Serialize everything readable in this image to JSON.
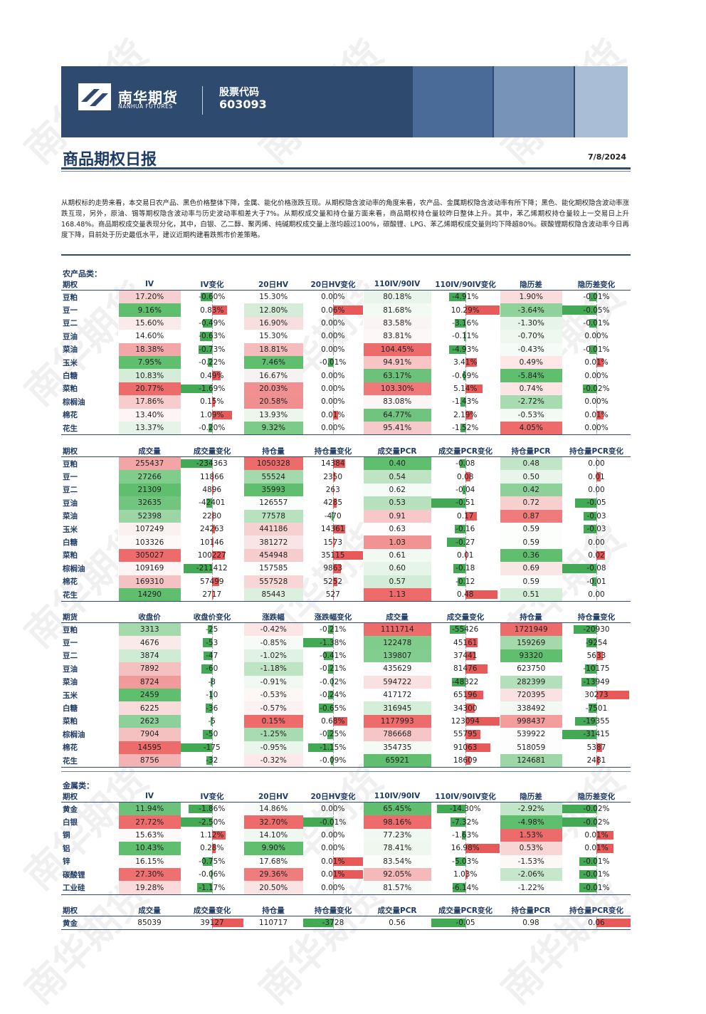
{
  "header": {
    "brand_cn": "南华期货",
    "brand_en": "NANHUA FUTURES",
    "stock_label": "股票代码",
    "stock_code": "603093"
  },
  "report": {
    "title": "商品期权日报",
    "date": "7/8/2024",
    "summary": "从期权标的走势来看，本交易日农产品、黑色价格整体下降，金属、能化价格涨跌互现。从期权隐含波动率的角度来看，农产品、金属期权隐含波动率有所下降；黑色、能化期权隐含波动率涨跌互现，另外，原油、锡等期权隐含波动率与历史波动率相差大于7%。从期权成交量和持仓量方面来看，商品期权持仓量较昨日整体上升。其中，苯乙烯期权持仓量较上一交易日上升168.48%。商品期权成交量表现分化，其中，白银、乙二醇、聚丙烯、纯碱期权成交量上涨均超过100%，碳酸锂、LPG、苯乙烯期权成交量则均下降超80%。碳酸锂期权隐含波动率今日再度下降，目前处于历史最低水平，建议近期构建看跌熊市价差策略。",
    "watermark": "南华期货"
  },
  "colors": {
    "navy": "#2e4a6e",
    "green": "#4caf50",
    "red": "#e53935"
  },
  "sections": {
    "agri_label": "农产品类：",
    "metal_label": "金属类："
  },
  "agri_vol": {
    "headers": [
      "期权",
      "IV",
      "IV变化",
      "20日HV",
      "20日HV变化",
      "110IV/90IV",
      "110IV/90IV变化",
      "隐历差",
      "隐历差变化"
    ],
    "rows": [
      {
        "name": "豆粕",
        "iv": "17.20%",
        "iv_chg": "-0.60%",
        "hv": "15.30%",
        "hv_chg": "0.00%",
        "skew": "80.18%",
        "skew_chg": "-4.91%",
        "diff": "1.90%",
        "diff_chg": "-0.01%"
      },
      {
        "name": "豆一",
        "iv": "9.16%",
        "iv_chg": "0.83%",
        "hv": "12.80%",
        "hv_chg": "0.06%",
        "skew": "81.68%",
        "skew_chg": "10.29%",
        "diff": "-3.64%",
        "diff_chg": "-0.05%"
      },
      {
        "name": "豆二",
        "iv": "15.60%",
        "iv_chg": "-0.49%",
        "hv": "16.90%",
        "hv_chg": "0.00%",
        "skew": "83.58%",
        "skew_chg": "-3.16%",
        "diff": "-1.30%",
        "diff_chg": "-0.01%"
      },
      {
        "name": "豆油",
        "iv": "14.60%",
        "iv_chg": "-0.63%",
        "hv": "15.30%",
        "hv_chg": "0.00%",
        "skew": "83.81%",
        "skew_chg": "-0.11%",
        "diff": "-0.70%",
        "diff_chg": "0.00%"
      },
      {
        "name": "菜油",
        "iv": "18.38%",
        "iv_chg": "-0.73%",
        "hv": "18.81%",
        "hv_chg": "0.00%",
        "skew": "104.45%",
        "skew_chg": "-4.93%",
        "diff": "-0.43%",
        "diff_chg": "-0.01%"
      },
      {
        "name": "玉米",
        "iv": "7.95%",
        "iv_chg": "-0.22%",
        "hv": "7.46%",
        "hv_chg": "-0.01%",
        "skew": "94.91%",
        "skew_chg": "3.41%",
        "diff": "0.49%",
        "diff_chg": "0.01%"
      },
      {
        "name": "白糖",
        "iv": "10.83%",
        "iv_chg": "0.49%",
        "hv": "16.67%",
        "hv_chg": "0.00%",
        "skew": "63.17%",
        "skew_chg": "-0.69%",
        "diff": "-5.84%",
        "diff_chg": "0.00%"
      },
      {
        "name": "菜粕",
        "iv": "20.77%",
        "iv_chg": "-1.69%",
        "hv": "20.03%",
        "hv_chg": "0.00%",
        "skew": "103.30%",
        "skew_chg": "5.14%",
        "diff": "0.74%",
        "diff_chg": "-0.02%"
      },
      {
        "name": "棕榈油",
        "iv": "17.86%",
        "iv_chg": "0.15%",
        "hv": "20.58%",
        "hv_chg": "0.00%",
        "skew": "83.08%",
        "skew_chg": "-1.43%",
        "diff": "-2.72%",
        "diff_chg": "0.00%"
      },
      {
        "name": "棉花",
        "iv": "13.40%",
        "iv_chg": "1.09%",
        "hv": "13.93%",
        "hv_chg": "0.01%",
        "skew": "64.77%",
        "skew_chg": "2.19%",
        "diff": "-0.53%",
        "diff_chg": "0.01%"
      },
      {
        "name": "花生",
        "iv": "13.37%",
        "iv_chg": "-0.20%",
        "hv": "9.32%",
        "hv_chg": "0.00%",
        "skew": "95.41%",
        "skew_chg": "-1.52%",
        "diff": "4.05%",
        "diff_chg": "0.00%"
      }
    ]
  },
  "agri_vol_fills": {
    "iv": [
      "#f6d0d0",
      "#5fbf6f",
      "#fbeaea",
      "#ffffff",
      "#f2a8a8",
      "#5fbf6f",
      "#d5ecd8",
      "#ee6b6b",
      "#f6cccc",
      "#fdf5f5",
      "#e6f4e8"
    ],
    "hv": [
      "#ffffff",
      "#d4ecd8",
      "#f9dede",
      "#ffffff",
      "#f4bcbc",
      "#5fbf6f",
      "#f6f2f2",
      "#f19090",
      "#f08f8f",
      "#ecf6ed",
      "#7dcb89"
    ],
    "skew": [
      "#e9f5eb",
      "#f2faf3",
      "#fbf4f4",
      "#fdf7f7",
      "#ee6b6b",
      "#f8c4c4",
      "#6cc27a",
      "#f07878",
      "#fbf5f5",
      "#70c47d",
      "#f6caca"
    ],
    "diff": [
      "#f9dcdc",
      "#8fd29a",
      "#e7f4e9",
      "#eef8ef",
      "#f5fbf6",
      "#fde7e7",
      "#5fbf6f",
      "#fde5e5",
      "#a7dbb0",
      "#f3faf4",
      "#ee6b6b"
    ]
  },
  "agri_vol_bars": {
    "iv_chg": [
      -0.6,
      0.83,
      -0.49,
      -0.63,
      -0.73,
      -0.22,
      0.49,
      -1.69,
      0.15,
      1.09,
      -0.2
    ],
    "hv_chg": [
      0,
      0.06,
      0,
      0,
      0,
      -0.01,
      0,
      0,
      0,
      0.01,
      0
    ],
    "skew_chg": [
      -4.91,
      10.29,
      -3.16,
      -0.11,
      -4.93,
      3.41,
      -0.69,
      5.14,
      -1.43,
      2.19,
      -1.52
    ],
    "diff_chg": [
      -0.01,
      -0.05,
      -0.01,
      0,
      -0.01,
      0.01,
      0,
      -0.02,
      0,
      0.01,
      0
    ]
  },
  "agri_volume": {
    "headers": [
      "期权",
      "成交量",
      "成交量变化",
      "持仓量",
      "持仓量变化",
      "成交量PCR",
      "成交量PCR变化",
      "持仓量PCR",
      "持仓量PCR变化"
    ],
    "rows": [
      {
        "name": "豆粕",
        "vol": "255437",
        "vol_chg": "-234363",
        "oi": "1050328",
        "oi_chg": "14384",
        "pcr": "0.40",
        "pcr_chg": "-0.08",
        "oi_pcr": "0.48",
        "oi_pcr_chg": "0.00"
      },
      {
        "name": "豆一",
        "vol": "27266",
        "vol_chg": "11866",
        "oi": "55524",
        "oi_chg": "2350",
        "pcr": "0.54",
        "pcr_chg": "0.08",
        "oi_pcr": "0.50",
        "oi_pcr_chg": "0.01"
      },
      {
        "name": "豆二",
        "vol": "21309",
        "vol_chg": "4896",
        "oi": "35993",
        "oi_chg": "263",
        "pcr": "0.62",
        "pcr_chg": "-0.04",
        "oi_pcr": "0.42",
        "oi_pcr_chg": "0.00"
      },
      {
        "name": "豆油",
        "vol": "32635",
        "vol_chg": "-42401",
        "oi": "126557",
        "oi_chg": "4285",
        "pcr": "0.53",
        "pcr_chg": "-0.51",
        "oi_pcr": "0.72",
        "oi_pcr_chg": "-0.05"
      },
      {
        "name": "菜油",
        "vol": "52398",
        "vol_chg": "2280",
        "oi": "77578",
        "oi_chg": "-470",
        "pcr": "0.91",
        "pcr_chg": "0.17",
        "oi_pcr": "0.87",
        "oi_pcr_chg": "-0.03"
      },
      {
        "name": "玉米",
        "vol": "107249",
        "vol_chg": "24263",
        "oi": "441186",
        "oi_chg": "14361",
        "pcr": "0.63",
        "pcr_chg": "-0.16",
        "oi_pcr": "0.59",
        "oi_pcr_chg": "-0.03"
      },
      {
        "name": "白糖",
        "vol": "103326",
        "vol_chg": "10146",
        "oi": "381272",
        "oi_chg": "1573",
        "pcr": "1.03",
        "pcr_chg": "-0.27",
        "oi_pcr": "0.59",
        "oi_pcr_chg": "0.00"
      },
      {
        "name": "菜粕",
        "vol": "305027",
        "vol_chg": "100227",
        "oi": "454948",
        "oi_chg": "35115",
        "pcr": "0.61",
        "pcr_chg": "0.01",
        "oi_pcr": "0.36",
        "oi_pcr_chg": "0.02"
      },
      {
        "name": "棕榈油",
        "vol": "109169",
        "vol_chg": "-211412",
        "oi": "157585",
        "oi_chg": "9863",
        "pcr": "0.60",
        "pcr_chg": "-0.18",
        "oi_pcr": "0.69",
        "oi_pcr_chg": "-0.08"
      },
      {
        "name": "棉花",
        "vol": "169310",
        "vol_chg": "57499",
        "oi": "557528",
        "oi_chg": "5252",
        "pcr": "0.57",
        "pcr_chg": "-0.12",
        "oi_pcr": "0.59",
        "oi_pcr_chg": "-0.01"
      },
      {
        "name": "花生",
        "vol": "14290",
        "vol_chg": "2717",
        "oi": "85443",
        "oi_chg": "527",
        "pcr": "1.13",
        "pcr_chg": "0.48",
        "oi_pcr": "0.51",
        "oi_pcr_chg": "0.00"
      }
    ]
  },
  "agri_volume_fills": {
    "vol": [
      "#f2a5a5",
      "#7fcc8b",
      "#5fbf6f",
      "#71c57e",
      "#9bd6a4",
      "#fbf1f1",
      "#fdf9f9",
      "#ee6b6b",
      "#fdf5f5",
      "#f4c2c2",
      "#5fbf6f"
    ],
    "oi": [
      "#ee6b6b",
      "#a4d9ac",
      "#5fbf6f",
      "#fbfdfb",
      "#b8e2be",
      "#f7d1d1",
      "#f9e5e5",
      "#f7cccc",
      "#fcfefc",
      "#f8d6d6",
      "#ddf0e0"
    ],
    "pcr": [
      "#5fbf6f",
      "#bfe4c4",
      "#f5fbf6",
      "#b6e1bc",
      "#f8c7c7",
      "#fefcfc",
      "#f29393",
      "#f1f9f2",
      "#e7f4e9",
      "#d3ecd7",
      "#ee6b6b"
    ],
    "oi_pcr": [
      "#c2e5c7",
      "#e8f5ea",
      "#8ed09a",
      "#f7cfcf",
      "#f07b7b",
      "#fcfefc",
      "#fcfefc",
      "#5fbf6f",
      "#fbe6e6",
      "#fcfefc",
      "#d5eed9"
    ]
  },
  "agri_volume_bars": {
    "vol_chg": [
      -234363,
      11866,
      4896,
      -42401,
      2280,
      24263,
      10146,
      100227,
      -211412,
      57499,
      2717
    ],
    "oi_chg": [
      14384,
      2350,
      263,
      4285,
      -470,
      14361,
      1573,
      35115,
      9863,
      5252,
      527
    ],
    "pcr_chg": [
      -0.08,
      0.08,
      -0.04,
      -0.51,
      0.17,
      -0.16,
      -0.27,
      0.01,
      -0.18,
      -0.12,
      0.48
    ],
    "oi_pcr_chg": [
      0,
      0.01,
      0,
      -0.05,
      -0.03,
      -0.03,
      0,
      0.02,
      -0.08,
      -0.01,
      0
    ]
  },
  "agri_futures": {
    "headers": [
      "期货",
      "收盘价",
      "收盘价变化",
      "涨跌幅",
      "涨跌幅变化",
      "成交量",
      "成交量变化",
      "持仓量",
      "持仓量变化"
    ],
    "rows": [
      {
        "name": "豆粕",
        "close": "3313",
        "close_chg": "-25",
        "pct": "-0.42%",
        "pct_chg": "-0.21%",
        "vol": "1111714",
        "vol_chg": "-55426",
        "oi": "1721949",
        "oi_chg": "-20930"
      },
      {
        "name": "豆一",
        "close": "4676",
        "close_chg": "-53",
        "pct": "-0.85%",
        "pct_chg": "-1.38%",
        "vol": "122478",
        "vol_chg": "45161",
        "oi": "159269",
        "oi_chg": "-9254"
      },
      {
        "name": "豆二",
        "close": "3874",
        "close_chg": "-47",
        "pct": "-1.02%",
        "pct_chg": "-0.41%",
        "vol": "139807",
        "vol_chg": "37441",
        "oi": "93320",
        "oi_chg": "5633"
      },
      {
        "name": "豆油",
        "close": "7892",
        "close_chg": "-60",
        "pct": "-1.18%",
        "pct_chg": "-0.21%",
        "vol": "435629",
        "vol_chg": "81476",
        "oi": "623750",
        "oi_chg": "-10175"
      },
      {
        "name": "菜油",
        "close": "8724",
        "close_chg": "-8",
        "pct": "-0.91%",
        "pct_chg": "-0.02%",
        "vol": "594722",
        "vol_chg": "-48322",
        "oi": "282399",
        "oi_chg": "-13949"
      },
      {
        "name": "玉米",
        "close": "2459",
        "close_chg": "-10",
        "pct": "-0.53%",
        "pct_chg": "-0.24%",
        "vol": "417172",
        "vol_chg": "65196",
        "oi": "720395",
        "oi_chg": "30273"
      },
      {
        "name": "白糖",
        "close": "6225",
        "close_chg": "-36",
        "pct": "-0.57%",
        "pct_chg": "-0.65%",
        "vol": "316945",
        "vol_chg": "34300",
        "oi": "338492",
        "oi_chg": "-7501"
      },
      {
        "name": "菜粕",
        "close": "2623",
        "close_chg": "-5",
        "pct": "0.15%",
        "pct_chg": "0.68%",
        "vol": "1177993",
        "vol_chg": "123094",
        "oi": "998437",
        "oi_chg": "-19355"
      },
      {
        "name": "棕榈油",
        "close": "7904",
        "close_chg": "-50",
        "pct": "-1.25%",
        "pct_chg": "-0.25%",
        "vol": "786668",
        "vol_chg": "55795",
        "oi": "539922",
        "oi_chg": "-31415"
      },
      {
        "name": "棉花",
        "close": "14595",
        "close_chg": "-175",
        "pct": "-0.95%",
        "pct_chg": "-1.15%",
        "vol": "354735",
        "vol_chg": "91063",
        "oi": "518059",
        "oi_chg": "5387"
      },
      {
        "name": "花生",
        "close": "8756",
        "close_chg": "-32",
        "pct": "-0.32%",
        "pct_chg": "-0.09%",
        "vol": "65921",
        "vol_chg": "18609",
        "oi": "124681",
        "oi_chg": "2481"
      }
    ]
  },
  "agri_futures_fills": {
    "close": [
      "#a5daad",
      "#fbeaea",
      "#d0ebd4",
      "#f5c0c0",
      "#f09a9a",
      "#5fbf6f",
      "#fadbdb",
      "#8dd099",
      "#f5c0c0",
      "#ee6b6b",
      "#f3b3b3"
    ],
    "pct": [
      "#fbe5e5",
      "#f7fbf8",
      "#e0f2e3",
      "#bfe4c4",
      "#f1f9f2",
      "#fdf7f7",
      "#fcf2f2",
      "#ee6b6b",
      "#a8dbb0",
      "#eaf6ec",
      "#fde9e9"
    ],
    "vol": [
      "#ee6b6b",
      "#7fcc8b",
      "#83ce8f",
      "#fefdfd",
      "#fae0e0",
      "#fefefe",
      "#d4eed8",
      "#ee6b6b",
      "#f6c6c6",
      "#f4fbf5",
      "#5fbf6f"
    ],
    "oi": [
      "#ee6b6b",
      "#a4d9ac",
      "#5fbf6f",
      "#fcfdfc",
      "#b3e0ba",
      "#fae2e2",
      "#f2f9f3",
      "#f39d9d",
      "#fcfdfc",
      "#fdfdfd",
      "#9dd7a6"
    ]
  },
  "agri_futures_bars": {
    "close_chg": [
      -25,
      -53,
      -47,
      -60,
      -8,
      -10,
      -36,
      -5,
      -50,
      -175,
      -32
    ],
    "pct_chg": [
      -0.21,
      -1.38,
      -0.41,
      -0.21,
      -0.02,
      -0.24,
      -0.65,
      0.68,
      -0.25,
      -1.15,
      -0.09
    ],
    "vol_chg": [
      -55426,
      45161,
      37441,
      81476,
      -48322,
      65196,
      34300,
      123094,
      55795,
      91063,
      18609
    ],
    "oi_chg": [
      -20930,
      -9254,
      5633,
      -10175,
      -13949,
      30273,
      -7501,
      -19355,
      -31415,
      5387,
      2481
    ]
  },
  "metal_vol": {
    "headers": [
      "期权",
      "IV",
      "IV变化",
      "20日HV",
      "20日HV变化",
      "110IV/90IV",
      "110IV/90IV变化",
      "隐历差",
      "隐历差变化"
    ],
    "rows": [
      {
        "name": "黄金",
        "iv": "11.94%",
        "iv_chg": "-1.86%",
        "hv": "14.86%",
        "hv_chg": "0.00%",
        "skew": "65.45%",
        "skew_chg": "-14.30%",
        "diff": "-2.92%",
        "diff_chg": "-0.02%"
      },
      {
        "name": "白银",
        "iv": "27.72%",
        "iv_chg": "-2.50%",
        "hv": "32.70%",
        "hv_chg": "-0.01%",
        "skew": "98.16%",
        "skew_chg": "-7.32%",
        "diff": "-4.98%",
        "diff_chg": "-0.02%"
      },
      {
        "name": "铜",
        "iv": "15.63%",
        "iv_chg": "1.12%",
        "hv": "14.10%",
        "hv_chg": "0.00%",
        "skew": "77.23%",
        "skew_chg": "-1.63%",
        "diff": "1.53%",
        "diff_chg": "0.01%"
      },
      {
        "name": "铝",
        "iv": "10.43%",
        "iv_chg": "0.28%",
        "hv": "9.90%",
        "hv_chg": "0.00%",
        "skew": "78.41%",
        "skew_chg": "16.98%",
        "diff": "0.53%",
        "diff_chg": "0.01%"
      },
      {
        "name": "锌",
        "iv": "16.15%",
        "iv_chg": "-0.75%",
        "hv": "17.68%",
        "hv_chg": "0.01%",
        "skew": "83.54%",
        "skew_chg": "-5.03%",
        "diff": "-1.53%",
        "diff_chg": "-0.01%"
      },
      {
        "name": "碳酸锂",
        "iv": "27.30%",
        "iv_chg": "-0.06%",
        "hv": "29.36%",
        "hv_chg": "0.01%",
        "skew": "92.05%",
        "skew_chg": "1.03%",
        "diff": "-2.06%",
        "diff_chg": "-0.01%"
      },
      {
        "name": "工业硅",
        "iv": "19.28%",
        "iv_chg": "-1.17%",
        "hv": "20.50%",
        "hv_chg": "0.00%",
        "skew": "81.57%",
        "skew_chg": "-6.14%",
        "diff": "-1.22%",
        "diff_chg": "-0.01%"
      }
    ]
  },
  "metal_vol_fills": {
    "iv": [
      "#6cc27a",
      "#ee6b6b",
      "#fdf9f9",
      "#5fbf6f",
      "#fdfafa",
      "#ef7070",
      "#fadada"
    ],
    "hv": [
      "#f8fcf8",
      "#ee6b6b",
      "#eff8f0",
      "#5fbf6f",
      "#fcfefc",
      "#f07d7d",
      "#fbe3e3"
    ],
    "skew": [
      "#5fbf6f",
      "#ee6b6b",
      "#f0f9f1",
      "#eef8ef",
      "#fbfdfb",
      "#f5b9b9",
      "#f8fcf8"
    ],
    "diff": [
      "#c3e5c8",
      "#5fbf6f",
      "#ee6b6b",
      "#f9d6d6",
      "#fdf8f8",
      "#c7e7cc",
      "#fbfdfb"
    ]
  },
  "metal_vol_bars": {
    "iv_chg": [
      -1.86,
      -2.5,
      1.12,
      0.28,
      -0.75,
      -0.06,
      -1.17
    ],
    "hv_chg": [
      0,
      -0.01,
      0,
      0,
      0.01,
      0.01,
      0
    ],
    "skew_chg": [
      -14.3,
      -7.32,
      -1.63,
      16.98,
      -5.03,
      1.03,
      -6.14
    ],
    "diff_chg": [
      -0.02,
      -0.02,
      0.01,
      0.01,
      -0.01,
      -0.01,
      -0.01
    ]
  },
  "metal_volume": {
    "headers": [
      "期权",
      "成交量",
      "成交量变化",
      "持仓量",
      "持仓量变化",
      "成交量PCR",
      "成交量PCR变化",
      "持仓量PCR",
      "持仓量PCR变化"
    ],
    "rows": [
      {
        "name": "黄金",
        "vol": "85039",
        "vol_chg": "39127",
        "oi": "110717",
        "oi_chg": "-3728",
        "pcr": "0.56",
        "pcr_chg": "-0.05",
        "oi_pcr": "0.98",
        "oi_pcr_chg": "0.06"
      }
    ]
  },
  "metal_volume_bars": {
    "vol_chg": [
      39127
    ],
    "oi_chg": [
      -3728
    ],
    "pcr_chg": [
      -0.05
    ],
    "oi_pcr_chg": [
      0.06
    ]
  }
}
